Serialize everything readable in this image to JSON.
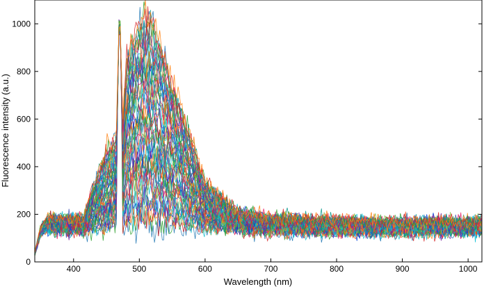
{
  "chart_data": {
    "type": "line",
    "title": "",
    "xlabel": "Wavelength (nm)",
    "ylabel": "Fluorescence intensity (a.u.)",
    "xlim": [
      341,
      1021
    ],
    "ylim": [
      0,
      1100
    ],
    "x_ticks": [
      400,
      500,
      600,
      700,
      800,
      900,
      1000
    ],
    "y_ticks": [
      0,
      200,
      400,
      600,
      800,
      1000
    ],
    "x_tick_labels": [
      "400",
      "500",
      "600",
      "700",
      "800",
      "900",
      "1000"
    ],
    "y_tick_labels": [
      "0",
      "200",
      "400",
      "600",
      "800",
      "1000"
    ],
    "grid": false,
    "legend": "none",
    "excitation_peak": {
      "x": 470,
      "y": 1070
    },
    "series_count": 60,
    "series_envelope": {
      "x": [
        341,
        350,
        360,
        400,
        415,
        430,
        450,
        465,
        470,
        475,
        480,
        500,
        510,
        520,
        550,
        600,
        650,
        700,
        800,
        900,
        1000,
        1021
      ],
      "peak_max": [
        40,
        150,
        185,
        180,
        185,
        320,
        470,
        520,
        1070,
        580,
        840,
        1000,
        1045,
        1000,
        760,
        330,
        210,
        185,
        175,
        170,
        170,
        170
      ],
      "peak_min": [
        30,
        110,
        130,
        130,
        130,
        135,
        140,
        150,
        1040,
        150,
        150,
        160,
        165,
        160,
        150,
        140,
        130,
        125,
        125,
        125,
        125,
        125
      ]
    },
    "colors": [
      "#1f77b4",
      "#2ca02c",
      "#d62728",
      "#ff7f0e",
      "#17becf",
      "#0044dd",
      "#7b1fa2",
      "#4caf50",
      "#00bcd4",
      "#ff5722",
      "#3f51b5",
      "#8bc34a",
      "#e91e63",
      "#009688"
    ]
  }
}
